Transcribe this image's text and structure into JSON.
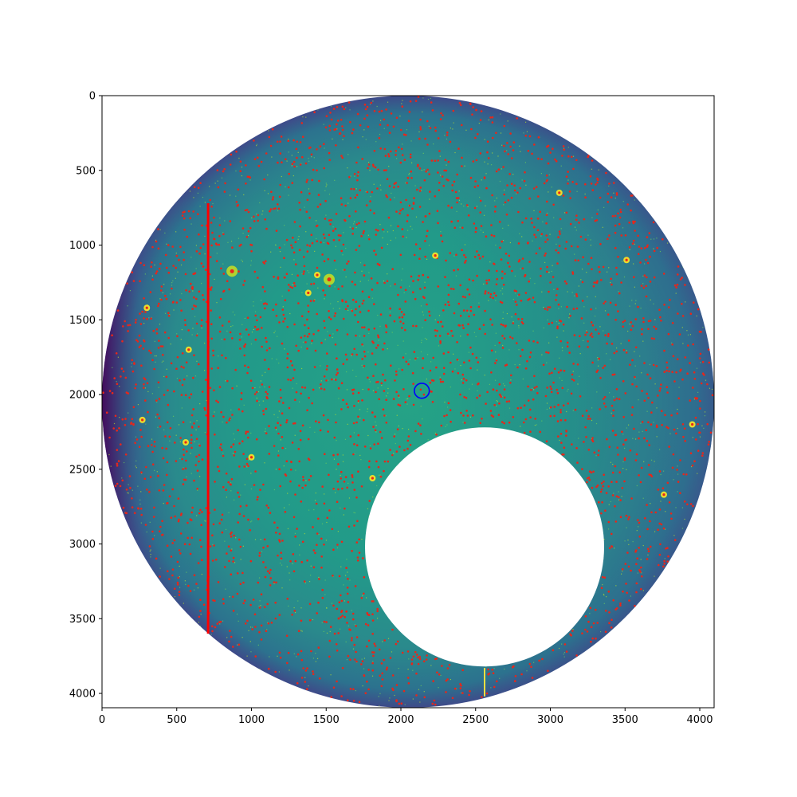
{
  "chart_data": {
    "type": "image",
    "title": "",
    "xlabel": "",
    "ylabel": "",
    "xlim": [
      0,
      4096
    ],
    "ylim": [
      4096,
      0
    ],
    "x_ticks": [
      0,
      500,
      1000,
      1500,
      2000,
      2500,
      3000,
      3500,
      4000
    ],
    "y_ticks": [
      0,
      500,
      1000,
      1500,
      2000,
      2500,
      3000,
      3500,
      4000
    ],
    "x_tick_labels": [
      "0",
      "500",
      "1000",
      "1500",
      "2000",
      "2500",
      "3000",
      "3500",
      "4000"
    ],
    "y_tick_labels": [
      "0",
      "500",
      "1000",
      "1500",
      "2000",
      "2500",
      "3000",
      "3500",
      "4000"
    ],
    "field": {
      "center": [
        2048,
        2048
      ],
      "radius": 2048
    },
    "obscuration": {
      "center": [
        2560,
        3020
      ],
      "radius": 800
    },
    "target": {
      "x": 2140,
      "y": 1975,
      "radius": 50,
      "color": "#0000ff"
    },
    "column_artifact": {
      "x": 710,
      "y_start": 720,
      "y_end": 3600,
      "color": "#ff0000"
    },
    "bleed_trail": {
      "x": 2560,
      "y_start": 3830,
      "y_end": 4020,
      "color": "#f5e042"
    },
    "bright_sources": [
      {
        "x": 870,
        "y": 1175
      },
      {
        "x": 1520,
        "y": 1230
      },
      {
        "x": 1440,
        "y": 1200
      },
      {
        "x": 580,
        "y": 1700
      },
      {
        "x": 300,
        "y": 1420
      },
      {
        "x": 270,
        "y": 2170
      },
      {
        "x": 560,
        "y": 2320
      },
      {
        "x": 3950,
        "y": 2200
      },
      {
        "x": 3510,
        "y": 1100
      },
      {
        "x": 3060,
        "y": 650
      },
      {
        "x": 1380,
        "y": 1320
      },
      {
        "x": 2230,
        "y": 1070
      },
      {
        "x": 1000,
        "y": 2420
      },
      {
        "x": 1810,
        "y": 2560
      },
      {
        "x": 3760,
        "y": 2670
      }
    ],
    "detected_sources": {
      "marker": "dot",
      "color": "#e8261a",
      "estimated_count": 3200
    },
    "colormap": "viridis",
    "background_colors": {
      "outer": "#2a6e8a",
      "inner": "#24a886",
      "edge": "#46327e"
    }
  }
}
